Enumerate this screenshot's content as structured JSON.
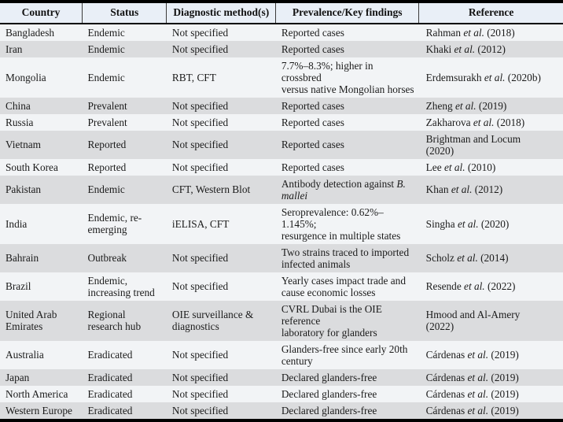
{
  "colors": {
    "header_bg": "#e9eff7",
    "row_base": "#f2f4f6",
    "row_alt": "#dbdcde",
    "border": "#000000"
  },
  "table": {
    "columns": [
      {
        "key": "country",
        "label": "Country"
      },
      {
        "key": "status",
        "label": "Status"
      },
      {
        "key": "diagnostic",
        "label": "Diagnostic method(s)"
      },
      {
        "key": "prevalence",
        "label": "Prevalence/Key findings"
      },
      {
        "key": "reference",
        "label": "Reference"
      }
    ],
    "rows": [
      {
        "country": "Bangladesh",
        "status": "Endemic",
        "diagnostic": "Not specified",
        "prevalence": "Reported cases",
        "reference": [
          {
            "t": "Rahman "
          },
          {
            "t": "et al.",
            "i": true
          },
          {
            "t": " (2018)"
          }
        ]
      },
      {
        "country": "Iran",
        "status": "Endemic",
        "diagnostic": "Not specified",
        "prevalence": "Reported cases",
        "reference": [
          {
            "t": "Khaki "
          },
          {
            "t": "et al.",
            "i": true
          },
          {
            "t": " (2012)"
          }
        ]
      },
      {
        "country": "Mongolia",
        "status": "Endemic",
        "diagnostic": "RBT, CFT",
        "prevalence": [
          {
            "t": "7.7%–8.3%; higher in crossbred"
          },
          {
            "br": true
          },
          {
            "t": "versus native Mongolian horses"
          }
        ],
        "reference": [
          {
            "t": "Erdemsurakh "
          },
          {
            "t": "et al.",
            "i": true
          },
          {
            "t": " (2020b)"
          }
        ]
      },
      {
        "country": "China",
        "status": "Prevalent",
        "diagnostic": "Not specified",
        "prevalence": "Reported cases",
        "reference": [
          {
            "t": "Zheng "
          },
          {
            "t": "et al.",
            "i": true
          },
          {
            "t": " (2019)"
          }
        ]
      },
      {
        "country": "Russia",
        "status": "Prevalent",
        "diagnostic": "Not specified",
        "prevalence": "Reported cases",
        "reference": [
          {
            "t": "Zakharova "
          },
          {
            "t": "et al.",
            "i": true
          },
          {
            "t": " (2018)"
          }
        ]
      },
      {
        "country": "Vietnam",
        "status": "Reported",
        "diagnostic": "Not specified",
        "prevalence": "Reported cases",
        "reference": [
          {
            "t": "Brightman and Locum"
          },
          {
            "br": true
          },
          {
            "t": "(2020)"
          }
        ]
      },
      {
        "country": "South Korea",
        "status": "Reported",
        "diagnostic": "Not specified",
        "prevalence": "Reported cases",
        "reference": [
          {
            "t": "Lee "
          },
          {
            "t": "et al.",
            "i": true
          },
          {
            "t": " (2010)"
          }
        ]
      },
      {
        "country": "Pakistan",
        "status": "Endemic",
        "diagnostic": "CFT, Western Blot",
        "prevalence": [
          {
            "t": "Antibody detection against "
          },
          {
            "t": "B.",
            "i": true
          },
          {
            "br": true
          },
          {
            "t": "mallei",
            "i": true
          }
        ],
        "reference": [
          {
            "t": "Khan "
          },
          {
            "t": "et al.",
            "i": true
          },
          {
            "t": " (2012)"
          }
        ]
      },
      {
        "country": "India",
        "status": [
          {
            "t": "Endemic, re-"
          },
          {
            "br": true
          },
          {
            "t": "emerging"
          }
        ],
        "diagnostic": "iELISA, CFT",
        "prevalence": [
          {
            "t": "Seroprevalence: 0.62%–1.145%;"
          },
          {
            "br": true
          },
          {
            "t": "resurgence in multiple states"
          }
        ],
        "reference": [
          {
            "t": "Singha "
          },
          {
            "t": "et al.",
            "i": true
          },
          {
            "t": " (2020)"
          }
        ]
      },
      {
        "country": "Bahrain",
        "status": "Outbreak",
        "diagnostic": "Not specified",
        "prevalence": [
          {
            "t": "Two strains traced to imported"
          },
          {
            "br": true
          },
          {
            "t": "infected animals"
          }
        ],
        "reference": [
          {
            "t": "Scholz "
          },
          {
            "t": "et al.",
            "i": true
          },
          {
            "t": " (2014)"
          }
        ]
      },
      {
        "country": "Brazil",
        "status": [
          {
            "t": "Endemic,"
          },
          {
            "br": true
          },
          {
            "t": "increasing trend"
          }
        ],
        "diagnostic": "Not specified",
        "prevalence": [
          {
            "t": "Yearly cases impact trade and"
          },
          {
            "br": true
          },
          {
            "t": "cause economic losses"
          }
        ],
        "reference": [
          {
            "t": "Resende "
          },
          {
            "t": "et al.",
            "i": true
          },
          {
            "t": " (2022)"
          }
        ]
      },
      {
        "country": [
          {
            "t": "United Arab"
          },
          {
            "br": true
          },
          {
            "t": "Emirates"
          }
        ],
        "status": [
          {
            "t": "Regional"
          },
          {
            "br": true
          },
          {
            "t": "research hub"
          }
        ],
        "diagnostic": [
          {
            "t": "OIE surveillance &"
          },
          {
            "br": true
          },
          {
            "t": "diagnostics"
          }
        ],
        "prevalence": [
          {
            "t": "CVRL Dubai is the OIE reference"
          },
          {
            "br": true
          },
          {
            "t": "laboratory for glanders"
          }
        ],
        "reference": [
          {
            "t": "Hmood and Al-Amery"
          },
          {
            "br": true
          },
          {
            "t": "(2022)"
          }
        ]
      },
      {
        "country": "Australia",
        "status": "Eradicated",
        "diagnostic": "Not specified",
        "prevalence": [
          {
            "t": "Glanders-free since early 20th"
          },
          {
            "br": true
          },
          {
            "t": "century"
          }
        ],
        "reference": [
          {
            "t": "Cárdenas "
          },
          {
            "t": "et al.",
            "i": true
          },
          {
            "t": " (2019)"
          }
        ]
      },
      {
        "country": "Japan",
        "status": "Eradicated",
        "diagnostic": "Not specified",
        "prevalence": "Declared glanders-free",
        "reference": [
          {
            "t": "Cárdenas "
          },
          {
            "t": "et al.",
            "i": true
          },
          {
            "t": " (2019)"
          }
        ]
      },
      {
        "country": "North America",
        "status": "Eradicated",
        "diagnostic": "Not specified",
        "prevalence": "Declared glanders-free",
        "reference": [
          {
            "t": "Cárdenas "
          },
          {
            "t": "et al.",
            "i": true
          },
          {
            "t": " (2019)"
          }
        ]
      },
      {
        "country": "Western Europe",
        "status": "Eradicated",
        "diagnostic": "Not specified",
        "prevalence": "Declared glanders-free",
        "reference": [
          {
            "t": "Cárdenas "
          },
          {
            "t": "et al.",
            "i": true
          },
          {
            "t": " (2019)"
          }
        ]
      }
    ]
  }
}
